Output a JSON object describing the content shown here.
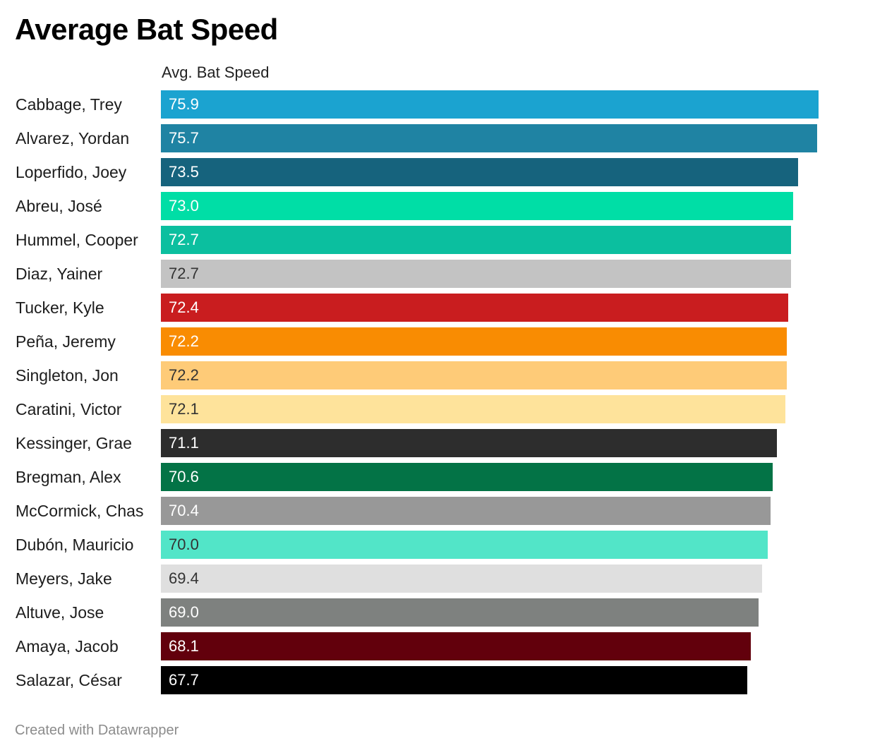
{
  "title": "Average Bat Speed",
  "column_header": "Avg. Bat Speed",
  "footer": "Created with Datawrapper",
  "chart_data": {
    "type": "bar",
    "orientation": "horizontal",
    "title": "Average Bat Speed",
    "value_label": "Avg. Bat Speed",
    "xlim": [
      0,
      75.9
    ],
    "grid": false,
    "legend": "none",
    "categories": [
      "Cabbage, Trey",
      "Alvarez, Yordan",
      "Loperfido, Joey",
      "Abreu, José",
      "Hummel, Cooper",
      "Diaz, Yainer",
      "Tucker, Kyle",
      "Peña, Jeremy",
      "Singleton, Jon",
      "Caratini, Victor",
      "Kessinger, Grae",
      "Bregman, Alex",
      "McCormick, Chas",
      "Dubón, Mauricio",
      "Meyers, Jake",
      "Altuve, Jose",
      "Amaya, Jacob",
      "Salazar, César"
    ],
    "values": [
      75.9,
      75.7,
      73.5,
      73.0,
      72.7,
      72.7,
      72.4,
      72.2,
      72.2,
      72.1,
      71.1,
      70.6,
      70.4,
      70.0,
      69.4,
      69.0,
      68.1,
      67.7
    ],
    "value_labels": [
      "75.9",
      "75.7",
      "73.5",
      "73.0",
      "72.7",
      "72.7",
      "72.4",
      "72.2",
      "72.2",
      "72.1",
      "71.1",
      "70.6",
      "70.4",
      "70.0",
      "69.4",
      "69.0",
      "68.1",
      "67.7"
    ],
    "bar_colors": [
      "#1ba3d0",
      "#1f83a3",
      "#16637d",
      "#00dea6",
      "#0bbf9f",
      "#c3c3c3",
      "#c91d1f",
      "#f98c02",
      "#fecb78",
      "#fee39b",
      "#2d2d2d",
      "#037346",
      "#989898",
      "#52e5c8",
      "#dfdfdf",
      "#7e817f",
      "#62000c",
      "#000000"
    ],
    "label_colors": [
      "#ffffff",
      "#ffffff",
      "#ffffff",
      "#ffffff",
      "#ffffff",
      "#333333",
      "#ffffff",
      "#ffffff",
      "#333333",
      "#333333",
      "#ffffff",
      "#ffffff",
      "#ffffff",
      "#333333",
      "#333333",
      "#ffffff",
      "#ffffff",
      "#ffffff"
    ]
  }
}
